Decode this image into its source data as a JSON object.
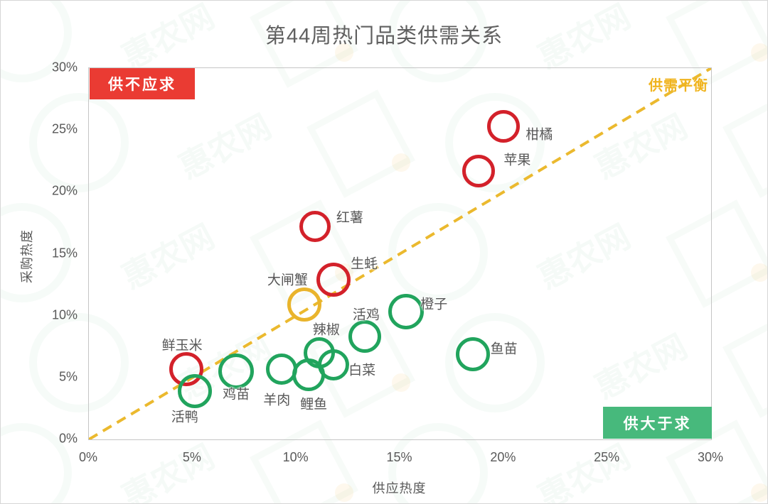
{
  "title": "第44周热门品类供需关系",
  "watermark": "惠农网",
  "colors": {
    "red": "#D3212A",
    "green": "#21A45D",
    "yellow": "#E9B42C",
    "badge_red_bg": "#EA3B33",
    "badge_green_bg": "#47B97C",
    "balance_line": "#EBB92E",
    "text_gray": "#595959"
  },
  "chart_data": {
    "type": "scatter",
    "title": "第44周热门品类供需关系",
    "xlabel": "供应热度",
    "ylabel": "采购热度",
    "xlim": [
      0,
      30
    ],
    "ylim": [
      0,
      30
    ],
    "x_ticks": [
      "0%",
      "5%",
      "10%",
      "15%",
      "20%",
      "25%",
      "30%"
    ],
    "y_ticks": [
      "0%",
      "5%",
      "10%",
      "15%",
      "20%",
      "25%",
      "30%"
    ],
    "grid": false,
    "legend": "none",
    "diagonal_line": {
      "label": "供需平衡",
      "style": "dashed",
      "color": "#EBB92E",
      "from": [
        0,
        0
      ],
      "to": [
        30,
        30
      ]
    },
    "quadrant_labels": [
      {
        "text": "供不应求",
        "position": "top-left",
        "bg": "#EA3B33",
        "color": "#ffffff"
      },
      {
        "text": "供大于求",
        "position": "bottom-right",
        "bg": "#47B97C",
        "color": "#ffffff"
      }
    ],
    "status_meaning": {
      "red": "供不应求",
      "yellow": "供需平衡",
      "green": "供大于求"
    },
    "points": [
      {
        "name": "柑橘",
        "x": 20.0,
        "y": 25.3,
        "status": "red",
        "r": 23,
        "label_offset": [
          50,
          10
        ]
      },
      {
        "name": "苹果",
        "x": 18.8,
        "y": 21.7,
        "status": "red",
        "r": 23,
        "label_offset": [
          54,
          -17
        ]
      },
      {
        "name": "红薯",
        "x": 10.9,
        "y": 17.2,
        "status": "red",
        "r": 22,
        "label_offset": [
          49,
          -14
        ]
      },
      {
        "name": "生蚝",
        "x": 11.8,
        "y": 12.9,
        "status": "red",
        "r": 24,
        "label_offset": [
          43,
          -24
        ]
      },
      {
        "name": "大闸蟹",
        "x": 10.4,
        "y": 10.9,
        "status": "yellow",
        "r": 24,
        "label_offset": [
          -24,
          -36
        ]
      },
      {
        "name": "橙子",
        "x": 15.3,
        "y": 10.3,
        "status": "green",
        "r": 25,
        "label_offset": [
          39,
          -12
        ]
      },
      {
        "name": "活鸡",
        "x": 13.3,
        "y": 8.3,
        "status": "green",
        "r": 23,
        "label_offset": [
          2,
          -32
        ]
      },
      {
        "name": "辣椒",
        "x": 11.1,
        "y": 7.0,
        "status": "green",
        "r": 22,
        "label_offset": [
          10,
          -34
        ]
      },
      {
        "name": "鱼苗",
        "x": 18.5,
        "y": 6.9,
        "status": "green",
        "r": 24,
        "label_offset": [
          44,
          -9
        ]
      },
      {
        "name": "白菜",
        "x": 11.8,
        "y": 6.0,
        "status": "green",
        "r": 22,
        "label_offset": [
          40,
          6
        ]
      },
      {
        "name": "鲜玉米",
        "x": 4.7,
        "y": 5.7,
        "status": "red",
        "r": 24,
        "label_offset": [
          -6,
          -35
        ]
      },
      {
        "name": "羊肉",
        "x": 9.3,
        "y": 5.7,
        "status": "green",
        "r": 22,
        "label_offset": [
          -7,
          42
        ]
      },
      {
        "name": "鸡苗",
        "x": 7.1,
        "y": 5.5,
        "status": "green",
        "r": 25,
        "label_offset": [
          0,
          31
        ]
      },
      {
        "name": "鲤鱼",
        "x": 10.6,
        "y": 5.2,
        "status": "green",
        "r": 23,
        "label_offset": [
          7,
          40
        ]
      },
      {
        "name": "活鸭",
        "x": 5.1,
        "y": 3.9,
        "status": "green",
        "r": 24,
        "label_offset": [
          -14,
          35
        ]
      }
    ]
  }
}
